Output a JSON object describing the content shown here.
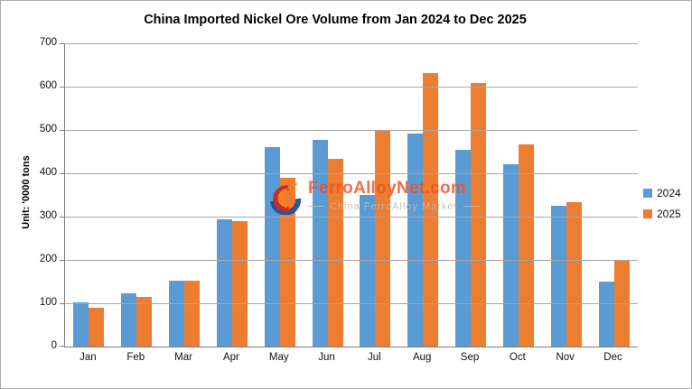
{
  "title": "China Imported Nickel Ore Volume from Jan 2024 to Dec 2025",
  "watermark": {
    "brand": "FerroAlloyNet.com",
    "tagline": "China FerroAlloy Market"
  },
  "colors": {
    "series_2024": "#5B9BD5",
    "series_2025": "#ED7D31",
    "brand_orange": "#F04E23",
    "tagline_gray": "#BABABA",
    "gridline": "#A6A6A6",
    "axis": "#808080"
  },
  "chart_data": {
    "type": "bar",
    "title": "China Imported Nickel Ore Volume from Jan 2024 to Dec 2025",
    "ylabel": "Unit: '0000 tons",
    "xlabel": "",
    "categories": [
      "Jan",
      "Feb",
      "Mar",
      "Apr",
      "May",
      "Jun",
      "Jul",
      "Aug",
      "Sep",
      "Oct",
      "Nov",
      "Dec"
    ],
    "series": [
      {
        "name": "2024",
        "color": "#5B9BD5",
        "values": [
          102,
          122,
          152,
          293,
          460,
          477,
          349,
          491,
          455,
          420,
          325,
          150
        ]
      },
      {
        "name": "2025",
        "color": "#ED7D31",
        "values": [
          89,
          114,
          152,
          290,
          389,
          433,
          500,
          631,
          608,
          466,
          333,
          200
        ]
      }
    ],
    "ylim": [
      0,
      700
    ],
    "ytick_step": 100,
    "grid": true,
    "legend_position": "right"
  }
}
